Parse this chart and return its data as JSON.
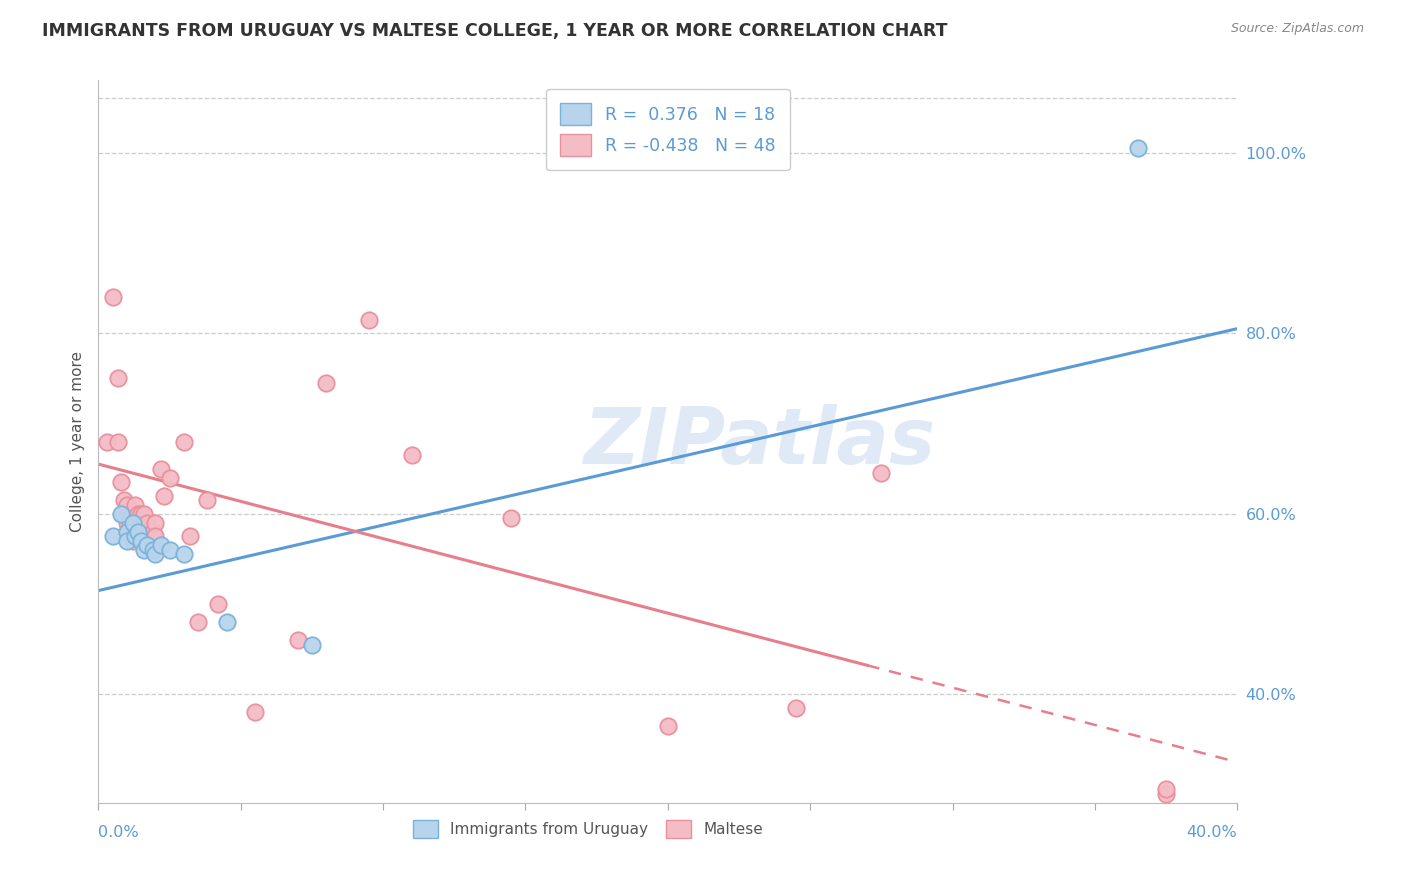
{
  "title": "IMMIGRANTS FROM URUGUAY VS MALTESE COLLEGE, 1 YEAR OR MORE CORRELATION CHART",
  "source": "Source: ZipAtlas.com",
  "ylabel": "College, 1 year or more",
  "xmin": 0.0,
  "xmax": 0.4,
  "ymin": 0.28,
  "ymax": 1.08,
  "yticks": [
    0.4,
    0.6,
    0.8,
    1.0
  ],
  "ytick_labels": [
    "40.0%",
    "60.0%",
    "80.0%",
    "100.0%"
  ],
  "legend_r1": "R =  0.376   N = 18",
  "legend_r2": "R = -0.438   N = 48",
  "blue_edge": "#7ab3d9",
  "blue_fill": "#b8d4ed",
  "pink_edge": "#e8909e",
  "pink_fill": "#f4bcc5",
  "line_blue": "#5b9bd5",
  "line_pink": "#e87d8c",
  "watermark": "ZIPatlas",
  "blue_scatter_x": [
    0.005,
    0.008,
    0.01,
    0.01,
    0.012,
    0.013,
    0.014,
    0.015,
    0.016,
    0.017,
    0.019,
    0.02,
    0.022,
    0.025,
    0.03,
    0.045,
    0.075,
    0.365
  ],
  "blue_scatter_y": [
    0.575,
    0.6,
    0.58,
    0.57,
    0.59,
    0.575,
    0.58,
    0.57,
    0.56,
    0.565,
    0.56,
    0.555,
    0.565,
    0.56,
    0.555,
    0.48,
    0.455,
    1.005
  ],
  "pink_scatter_x": [
    0.003,
    0.005,
    0.007,
    0.007,
    0.008,
    0.009,
    0.009,
    0.01,
    0.01,
    0.011,
    0.011,
    0.012,
    0.012,
    0.013,
    0.013,
    0.013,
    0.014,
    0.014,
    0.015,
    0.015,
    0.015,
    0.016,
    0.016,
    0.017,
    0.017,
    0.018,
    0.019,
    0.02,
    0.02,
    0.022,
    0.023,
    0.025,
    0.03,
    0.032,
    0.035,
    0.038,
    0.042,
    0.055,
    0.07,
    0.08,
    0.095,
    0.11,
    0.145,
    0.2,
    0.245,
    0.275,
    0.375,
    0.375
  ],
  "pink_scatter_y": [
    0.68,
    0.84,
    0.75,
    0.68,
    0.635,
    0.615,
    0.6,
    0.59,
    0.61,
    0.59,
    0.575,
    0.6,
    0.57,
    0.58,
    0.59,
    0.61,
    0.585,
    0.6,
    0.59,
    0.575,
    0.6,
    0.58,
    0.6,
    0.565,
    0.59,
    0.575,
    0.58,
    0.59,
    0.575,
    0.65,
    0.62,
    0.64,
    0.68,
    0.575,
    0.48,
    0.615,
    0.5,
    0.38,
    0.46,
    0.745,
    0.815,
    0.665,
    0.595,
    0.365,
    0.385,
    0.645,
    0.29,
    0.295
  ],
  "blue_line_x": [
    0.0,
    0.4
  ],
  "blue_line_y": [
    0.515,
    0.805
  ],
  "pink_line_x0": 0.0,
  "pink_line_x_split": 0.27,
  "pink_line_x1": 0.4,
  "pink_line_y0": 0.655,
  "pink_line_y1": 0.325,
  "grid_color": "#cccccc",
  "title_color": "#333333",
  "source_color": "#888888",
  "ylabel_color": "#555555",
  "tick_color": "#5b9bd5"
}
